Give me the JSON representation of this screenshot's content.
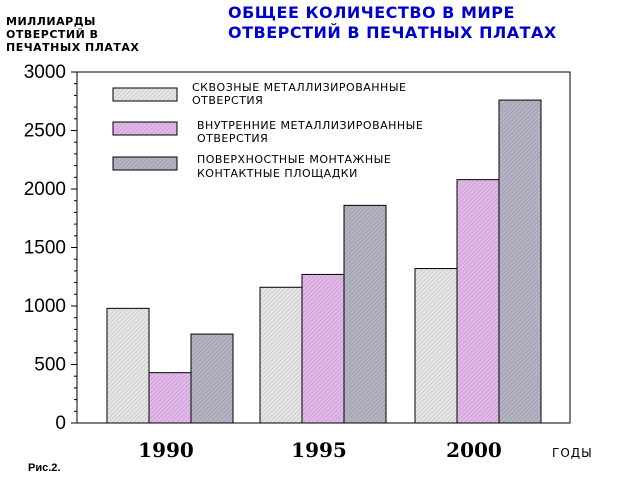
{
  "chart_data": {
    "type": "bar",
    "title": [
      "ОБЩЕЕ КОЛИЧЕСТВО В МИРЕ",
      "ОТВЕРСТИЙ В ПЕЧАТНЫХ ПЛАТАХ"
    ],
    "ylabel": [
      "МИЛЛИАРДЫ",
      "ОТВЕРСТИЙ В",
      "ПЕЧАТНЫХ ПЛАТАХ"
    ],
    "xlabel": "ГОДЫ",
    "categories": [
      "1990",
      "1995",
      "2000"
    ],
    "ylim": [
      0,
      3000
    ],
    "yticks": [
      0,
      500,
      1000,
      1500,
      2000,
      2500,
      3000
    ],
    "series": [
      {
        "name": [
          "СКВОЗНЫЕ МЕТАЛЛИЗИРОВАННЫЕ",
          "ОТВЕРСТИЯ"
        ],
        "values": [
          980,
          1160,
          1320
        ],
        "color": "#e6e6e6"
      },
      {
        "name": [
          "ВНУТРЕННИЕ МЕТАЛЛИЗИРОВАННЫЕ",
          "ОТВЕРСТИЯ"
        ],
        "values": [
          430,
          1270,
          2080
        ],
        "color": "#e2b9ea"
      },
      {
        "name": [
          "ПОВЕРХНОСТНЫЕ МОНТАЖНЫЕ",
          "КОНТАКТНЫЕ ПЛОЩАДКИ"
        ],
        "values": [
          760,
          1860,
          2760
        ],
        "color": "#b4b4c4"
      }
    ],
    "legend": "top-left",
    "grid": false
  },
  "caption": "Рис.2."
}
